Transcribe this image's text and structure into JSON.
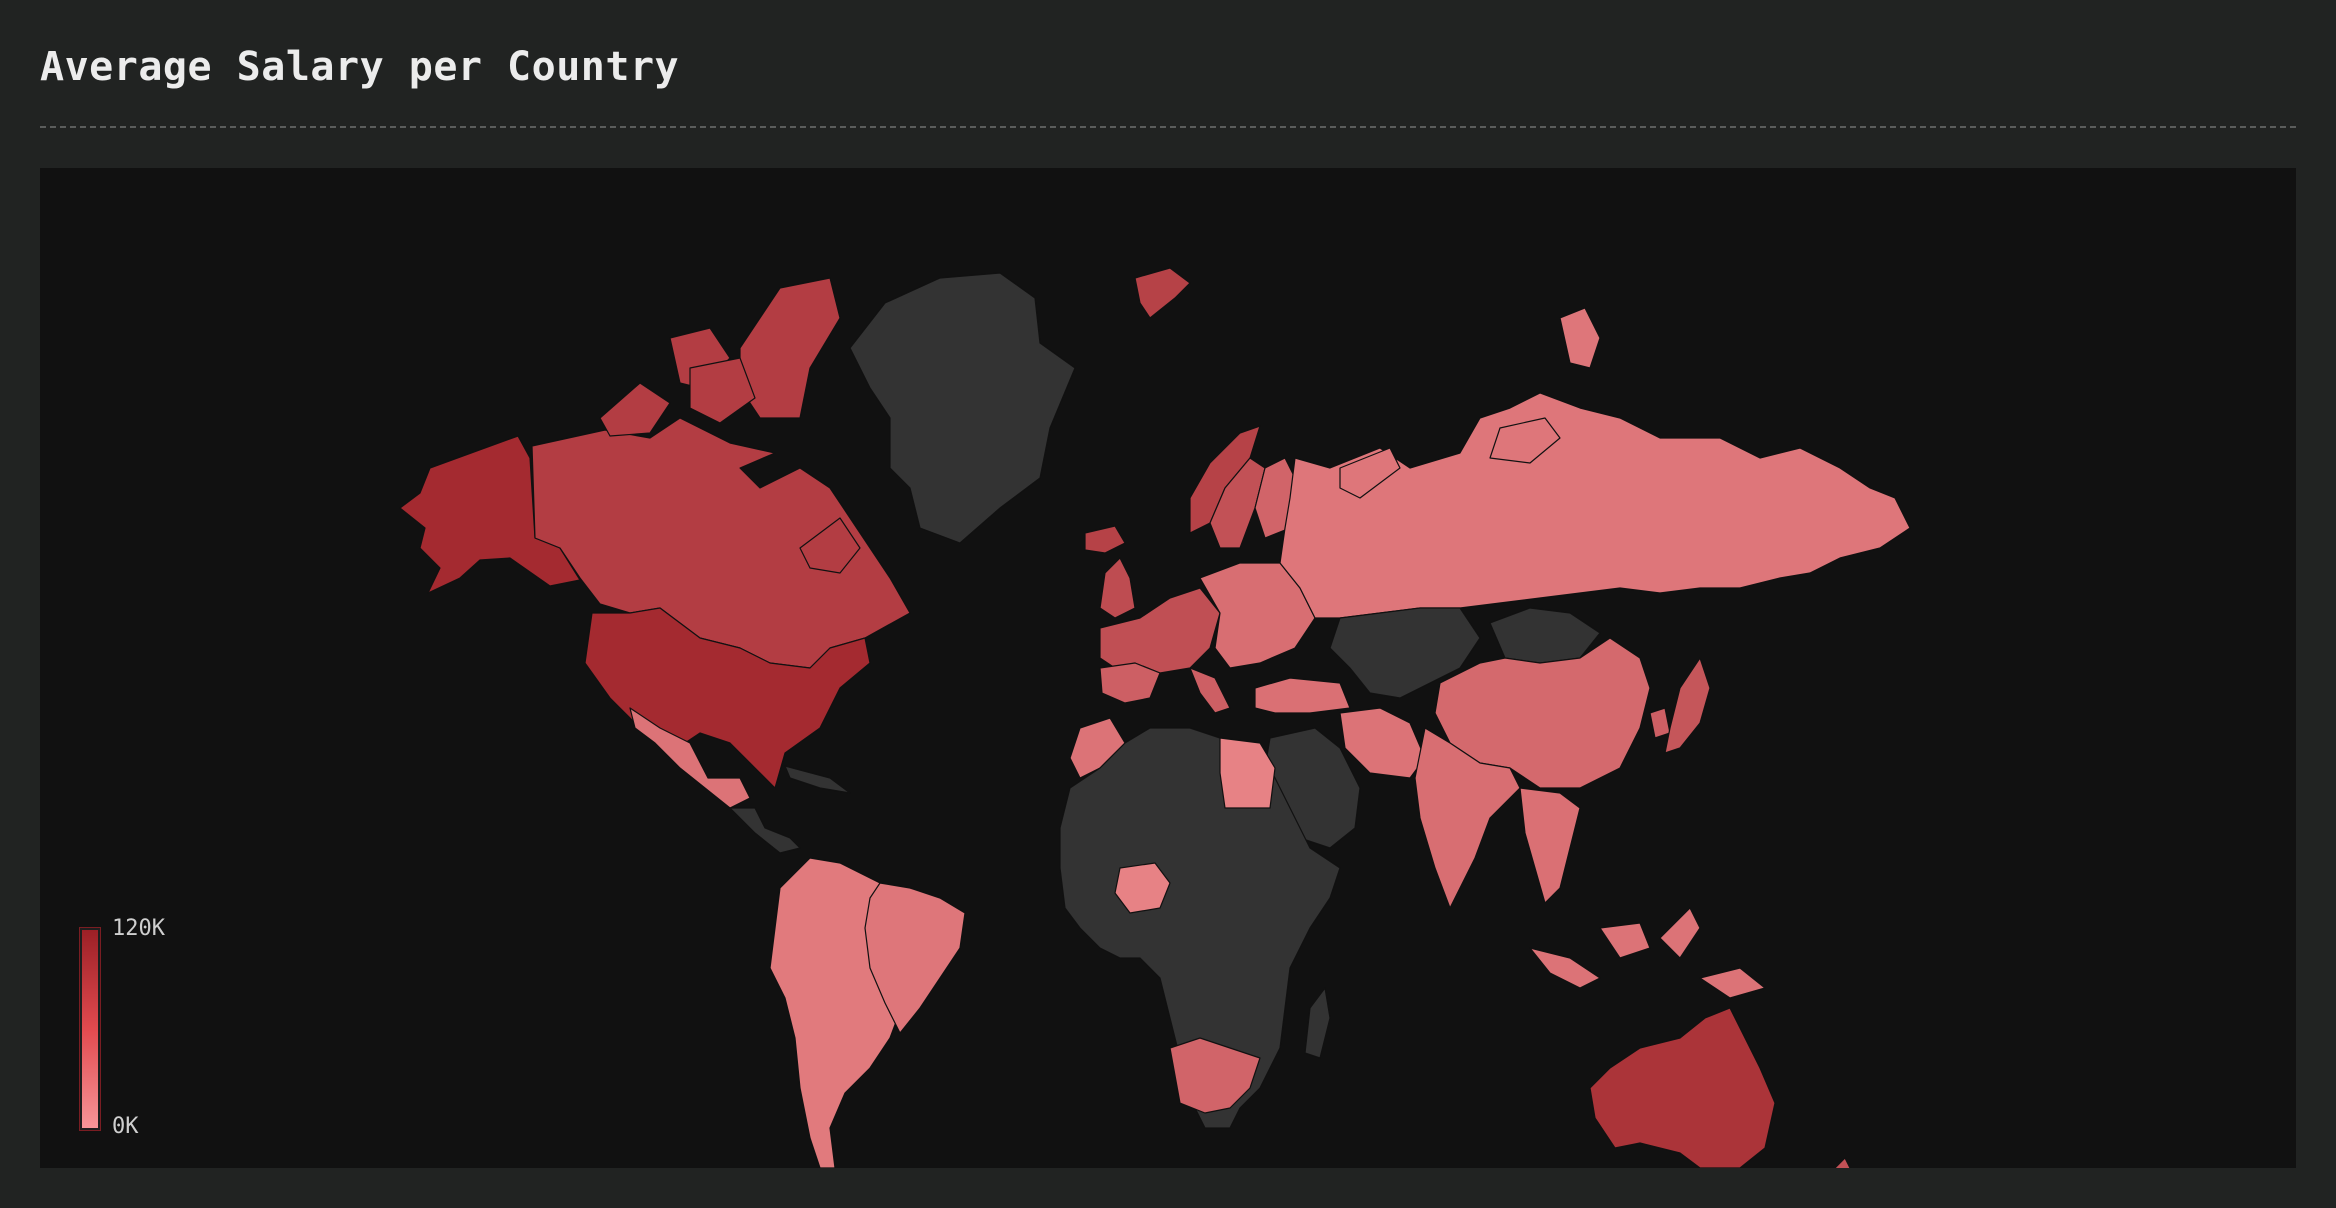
{
  "title": "Average Salary per Country",
  "legend": {
    "max_label": "120K",
    "min_label": "0K"
  },
  "colors": {
    "background": "#212322",
    "map_background": "#111111",
    "no_data": "#333333",
    "scale_high": "#9c2026",
    "scale_low": "#f69598"
  },
  "chart_data": {
    "type": "choropleth",
    "title": "Average Salary per Country",
    "scale": {
      "min": 0,
      "max": 120000,
      "min_label": "0K",
      "max_label": "120K"
    },
    "legend_position": "bottom-left",
    "regions": [
      {
        "name": "United States",
        "value": 110000
      },
      {
        "name": "Alaska",
        "value": 110000
      },
      {
        "name": "Canada",
        "value": 90000
      },
      {
        "name": "Australia",
        "value": 100000
      },
      {
        "name": "New Zealand",
        "value": 70000
      },
      {
        "name": "Norway",
        "value": 85000
      },
      {
        "name": "Iceland",
        "value": 85000
      },
      {
        "name": "Svalbard",
        "value": 85000
      },
      {
        "name": "United Kingdom",
        "value": 75000
      },
      {
        "name": "Western Europe",
        "value": 72000
      },
      {
        "name": "Southern Europe",
        "value": 55000
      },
      {
        "name": "Sweden",
        "value": 70000
      },
      {
        "name": "Finland",
        "value": 50000
      },
      {
        "name": "Eastern Europe",
        "value": 40000
      },
      {
        "name": "Russia",
        "value": 32000
      },
      {
        "name": "China",
        "value": 45000
      },
      {
        "name": "Japan",
        "value": 65000
      },
      {
        "name": "South Korea",
        "value": 55000
      },
      {
        "name": "India",
        "value": 40000
      },
      {
        "name": "Iran",
        "value": 35000
      },
      {
        "name": "Turkey",
        "value": 38000
      },
      {
        "name": "Southeast Asia",
        "value": 38000
      },
      {
        "name": "Indonesia",
        "value": 35000
      },
      {
        "name": "Mexico",
        "value": 35000
      },
      {
        "name": "Brazil",
        "value": 32000
      },
      {
        "name": "South America",
        "value": 28000
      },
      {
        "name": "South Africa",
        "value": 50000
      },
      {
        "name": "Egypt",
        "value": 20000
      },
      {
        "name": "Nigeria",
        "value": 20000
      },
      {
        "name": "Morocco",
        "value": 35000
      }
    ],
    "no_data_regions": [
      "Greenland",
      "Africa",
      "Central Asia",
      "Mongolia",
      "Arabia",
      "Central America",
      "Caribbean",
      "Madagascar"
    ]
  }
}
